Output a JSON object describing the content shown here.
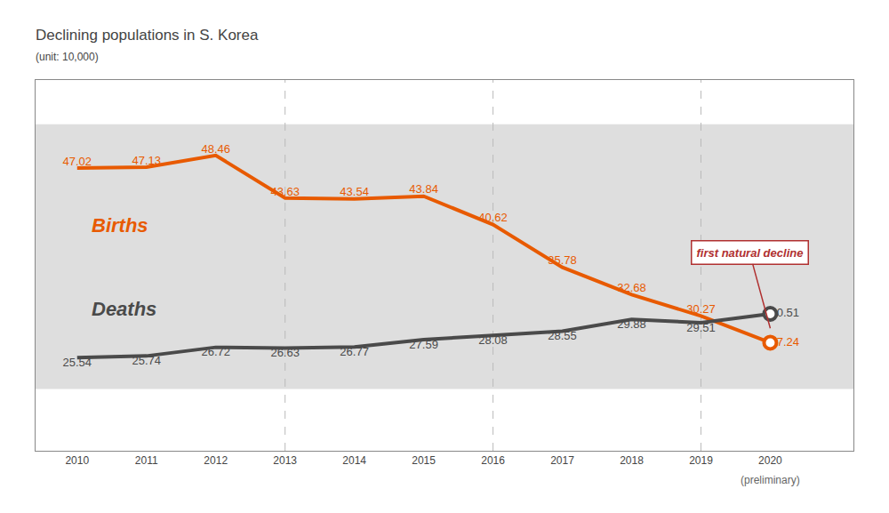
{
  "chart_data": {
    "type": "line",
    "title": "Declining populations in S. Korea",
    "subtitle": "(unit: 10,000)",
    "x": [
      2010,
      2011,
      2012,
      2013,
      2014,
      2015,
      2016,
      2017,
      2018,
      2019,
      2020
    ],
    "series": [
      {
        "name": "Births",
        "color": "#E85A00",
        "values": [
          47.02,
          47.13,
          48.46,
          43.63,
          43.54,
          43.84,
          40.62,
          35.78,
          32.68,
          30.27,
          27.24
        ]
      },
      {
        "name": "Deaths",
        "color": "#4A4A4A",
        "values": [
          25.54,
          25.74,
          26.72,
          26.63,
          26.77,
          27.59,
          28.08,
          28.55,
          29.88,
          29.51,
          30.51
        ]
      }
    ],
    "xlim": [
      2009.4,
      2021.2
    ],
    "xticks": [
      2010,
      2011,
      2012,
      2013,
      2014,
      2015,
      2016,
      2017,
      2018,
      2019,
      2020
    ],
    "ylim": [
      15,
      57
    ],
    "grid": false,
    "data_labels": true,
    "tick_labels": "x",
    "band": {
      "from": 22,
      "to": 52,
      "color": "#DEDEDE"
    },
    "reference_lines_x": [
      2013,
      2016,
      2019
    ],
    "annotations": [
      {
        "text": "first natural decline",
        "x": 2020,
        "color": "#B03030"
      },
      {
        "text": "(preliminary)",
        "x": 2020
      }
    ]
  }
}
